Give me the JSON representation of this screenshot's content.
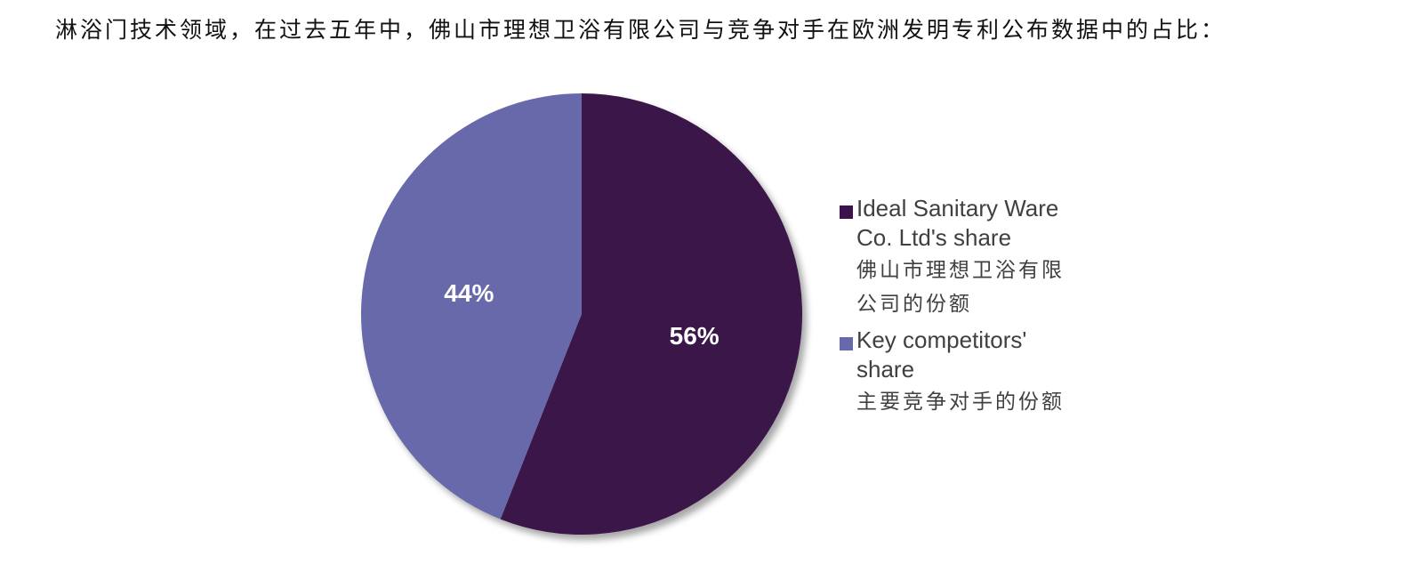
{
  "title": "淋浴门技术领域，在过去五年中，佛山市理想卫浴有限公司与竞争对手在欧洲发明专利公布数据中的占比：",
  "chart_data": {
    "type": "pie",
    "title": "淋浴门技术领域，在过去五年中，佛山市理想卫浴有限公司与竞争对手在欧洲发明专利公布数据中的占比：",
    "legend_position": "right",
    "slices": [
      {
        "label_en": "Ideal Sanitary Ware Co. Ltd's share",
        "label_en_lines": [
          "Ideal Sanitary Ware",
          "Co. Ltd's share"
        ],
        "label_zh": "佛山市理想卫浴有限公司的份额",
        "label_zh_lines": [
          "佛山市理想卫浴有限",
          "公司的份额"
        ],
        "value": 56,
        "data_label": "56%",
        "color": "#3b1249"
      },
      {
        "label_en": "Key competitors' share",
        "label_en_lines": [
          "Key competitors'",
          "share"
        ],
        "label_zh": "主要竞争对手的份额",
        "label_zh_lines": [
          "主要竞争对手的份额"
        ],
        "value": 44,
        "data_label": "44%",
        "color": "#6869aa"
      }
    ]
  }
}
